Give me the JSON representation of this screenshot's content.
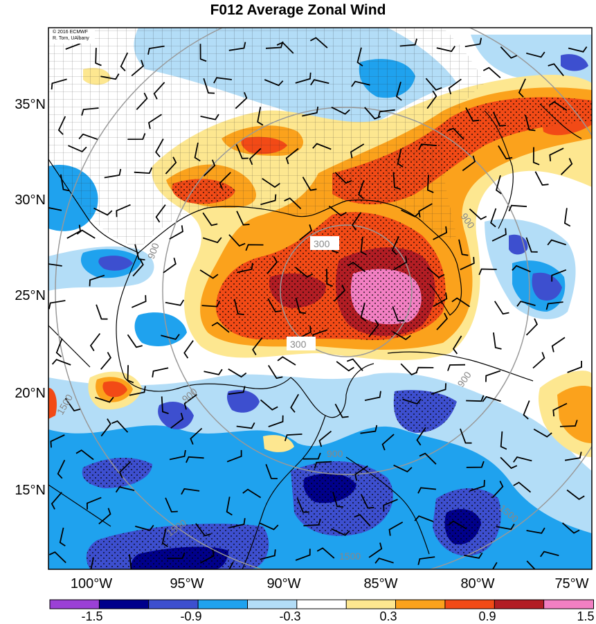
{
  "title": "F012 Average Zonal Wind",
  "credit": [
    "© 2016 ECMWF",
    "R. Torn, UAlbany"
  ],
  "latitude_labels": [
    "35°N",
    "30°N",
    "25°N",
    "20°N",
    "15°N"
  ],
  "longitude_labels": [
    "100°W",
    "95°W",
    "90°W",
    "85°W",
    "80°W",
    "75°W"
  ],
  "colorbar": {
    "labels": [
      "-1.5",
      "-0.9",
      "-0.3",
      "0.3",
      "0.9",
      "1.5"
    ],
    "colors": [
      "#9b40d6",
      "#00008b",
      "#3d4fcf",
      "#1fa2ee",
      "#b3ddf7",
      "#ffffff",
      "#fde790",
      "#fba21c",
      "#f24a16",
      "#b21d24",
      "#f27fc2"
    ]
  },
  "range_ring_labels": [
    "300",
    "300",
    "900",
    "900",
    "900",
    "900",
    "900",
    "1500",
    "1500",
    "1500",
    "1500"
  ]
}
